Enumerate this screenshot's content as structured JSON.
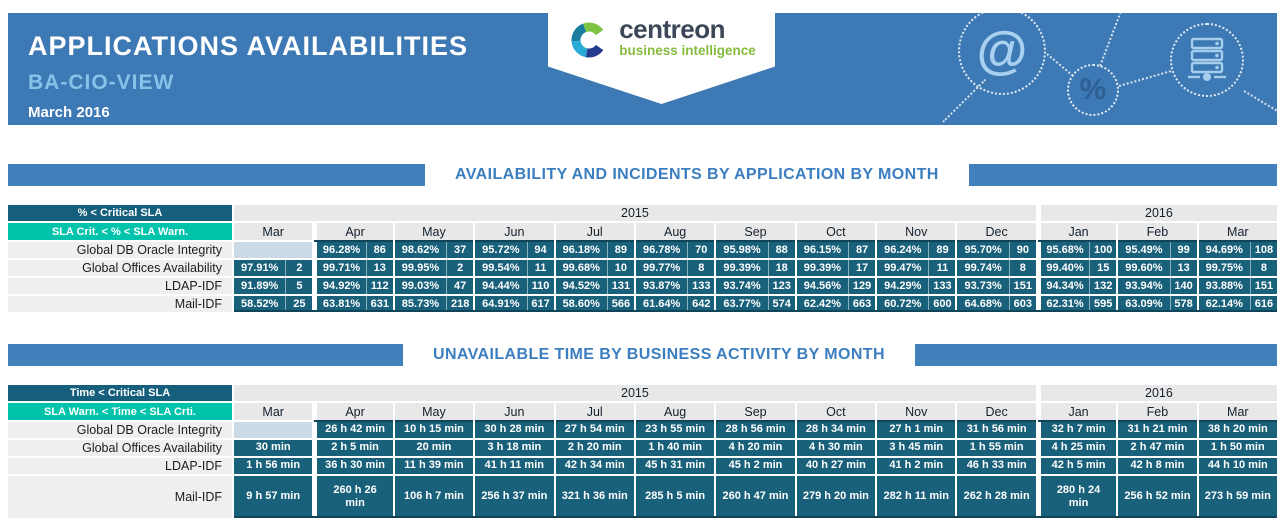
{
  "header": {
    "title": "APPLICATIONS AVAILABILITIES",
    "subtitle": "BA-CIO-VIEW",
    "period": "March 2016",
    "logo": {
      "name": "centreon",
      "tagline": "business intelligence"
    },
    "decor": {
      "at_symbol": "@",
      "percent_symbol": "%"
    }
  },
  "colors": {
    "band_blue": "#3d79b4",
    "section_title_blue": "#3b7ec0",
    "cell_teal": "#19607a",
    "legend_dark_teal": "#155f7c",
    "legend_turquoise": "#00c3ac",
    "empty_cell_blue": "#ccd9e6",
    "logo_green": "#85bb3f"
  },
  "months": [
    "Mar",
    "Apr",
    "May",
    "Jun",
    "Jul",
    "Aug",
    "Sep",
    "Oct",
    "Nov",
    "Dec",
    "Jan",
    "Feb",
    "Mar"
  ],
  "year_groups": [
    {
      "label": "2015",
      "cols": 10
    },
    {
      "label": "2016",
      "cols": 3
    }
  ],
  "availability_table": {
    "title": "AVAILABILITY AND INCIDENTS BY APPLICATION BY MONTH",
    "legend_critical": "% < Critical SLA",
    "legend_warning": "SLA Crit. < % < SLA Warn.",
    "rows": [
      {
        "label": "Global DB Oracle Integrity",
        "cells": [
          null,
          [
            "96.28%",
            "86"
          ],
          [
            "98.62%",
            "37"
          ],
          [
            "95.72%",
            "94"
          ],
          [
            "96.18%",
            "89"
          ],
          [
            "96.78%",
            "70"
          ],
          [
            "95.98%",
            "88"
          ],
          [
            "96.15%",
            "87"
          ],
          [
            "96.24%",
            "89"
          ],
          [
            "95.70%",
            "90"
          ],
          [
            "95.68%",
            "100"
          ],
          [
            "95.49%",
            "99"
          ],
          [
            "94.69%",
            "108"
          ]
        ]
      },
      {
        "label": "Global Offices Availability",
        "cells": [
          [
            "97.91%",
            "2"
          ],
          [
            "99.71%",
            "13"
          ],
          [
            "99.95%",
            "2"
          ],
          [
            "99.54%",
            "11"
          ],
          [
            "99.68%",
            "10"
          ],
          [
            "99.77%",
            "8"
          ],
          [
            "99.39%",
            "18"
          ],
          [
            "99.39%",
            "17"
          ],
          [
            "99.47%",
            "11"
          ],
          [
            "99.74%",
            "8"
          ],
          [
            "99.40%",
            "15"
          ],
          [
            "99.60%",
            "13"
          ],
          [
            "99.75%",
            "8"
          ]
        ]
      },
      {
        "label": "LDAP-IDF",
        "cells": [
          [
            "91.89%",
            "5"
          ],
          [
            "94.92%",
            "112"
          ],
          [
            "99.03%",
            "47"
          ],
          [
            "94.44%",
            "110"
          ],
          [
            "94.52%",
            "131"
          ],
          [
            "93.87%",
            "133"
          ],
          [
            "93.74%",
            "123"
          ],
          [
            "94.56%",
            "129"
          ],
          [
            "94.29%",
            "133"
          ],
          [
            "93.73%",
            "151"
          ],
          [
            "94.34%",
            "132"
          ],
          [
            "93.94%",
            "140"
          ],
          [
            "93.88%",
            "151"
          ]
        ]
      },
      {
        "label": "Mail-IDF",
        "cells": [
          [
            "58.52%",
            "25"
          ],
          [
            "63.81%",
            "631"
          ],
          [
            "85.73%",
            "218"
          ],
          [
            "64.91%",
            "617"
          ],
          [
            "58.60%",
            "566"
          ],
          [
            "61.64%",
            "642"
          ],
          [
            "63.77%",
            "574"
          ],
          [
            "62.42%",
            "663"
          ],
          [
            "60.72%",
            "600"
          ],
          [
            "64.68%",
            "603"
          ],
          [
            "62.31%",
            "595"
          ],
          [
            "63.09%",
            "578"
          ],
          [
            "62.14%",
            "616"
          ]
        ]
      }
    ]
  },
  "unavailable_table": {
    "title": "UNAVAILABLE TIME BY BUSINESS ACTIVITY BY MONTH",
    "legend_critical": "Time < Critical SLA",
    "legend_warning": "SLA Warn. < Time < SLA Crti.",
    "rows": [
      {
        "label": "Global DB Oracle Integrity",
        "cells": [
          null,
          "26 h 42 min",
          "10 h 15 min",
          "30 h 28 min",
          "27 h 54 min",
          "23 h 55 min",
          "28 h 56 min",
          "28 h 34 min",
          "27 h 1 min",
          "31 h 56 min",
          "32 h 7 min",
          "31 h 21 min",
          "38 h 20 min"
        ]
      },
      {
        "label": "Global Offices Availability",
        "cells": [
          "30 min",
          "2 h 5 min",
          "20 min",
          "3 h 18 min",
          "2 h 20 min",
          "1 h 40 min",
          "4 h 20 min",
          "4 h 30 min",
          "3 h 45 min",
          "1 h 55 min",
          "4 h 25 min",
          "2 h 47 min",
          "1 h 50 min"
        ]
      },
      {
        "label": "LDAP-IDF",
        "cells": [
          "1 h 56 min",
          "36 h 30 min",
          "11 h 39 min",
          "41 h 11 min",
          "42 h 34 min",
          "45 h 31 min",
          "45 h 2 min",
          "40 h 27 min",
          "41 h 2 min",
          "46 h 33 min",
          "42 h 5 min",
          "42 h 8 min",
          "44 h 10 min"
        ]
      },
      {
        "label": "Mail-IDF",
        "cells": [
          "9 h 57 min",
          "260 h 26 min",
          "106 h 7 min",
          "256 h 37 min",
          "321 h 36 min",
          "285 h 5 min",
          "260 h 47 min",
          "279 h 20 min",
          "282 h 11 min",
          "262 h 28 min",
          "280 h 24 min",
          "256 h 52 min",
          "273 h 59 min"
        ]
      }
    ]
  }
}
